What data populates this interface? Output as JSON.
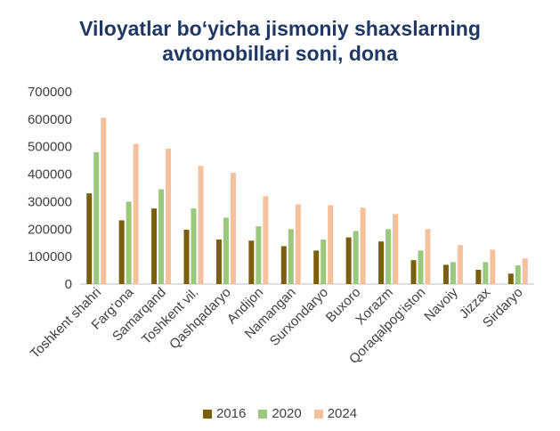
{
  "chart_data": {
    "type": "bar",
    "title_lines": [
      "Viloyatlar bo‘yicha jismoniy shaxslarning",
      "avtomobillari soni, dona"
    ],
    "categories": [
      "Toshkent shahri",
      "Farg‘ona",
      "Samarqand",
      "Toshkent vil.",
      "Qashqadaryo",
      "Andijon",
      "Namangan",
      "Surxondaryo",
      "Buxoro",
      "Xorazm",
      "Qoraqalpog‘iston",
      "Navoiy",
      "Jizzax",
      "Sirdaryo"
    ],
    "series": [
      {
        "name": "2016",
        "color": "#7a5f0f",
        "values": [
          330000,
          232000,
          275000,
          198000,
          162000,
          158000,
          138000,
          122000,
          170000,
          155000,
          87000,
          70000,
          52000,
          38000
        ]
      },
      {
        "name": "2020",
        "color": "#9bc77e",
        "values": [
          480000,
          300000,
          345000,
          275000,
          242000,
          210000,
          200000,
          162000,
          193000,
          200000,
          122000,
          80000,
          80000,
          68000
        ]
      },
      {
        "name": "2024",
        "color": "#f5c09c",
        "values": [
          605000,
          510000,
          493000,
          430000,
          405000,
          320000,
          290000,
          287000,
          278000,
          255000,
          200000,
          142000,
          125000,
          93000
        ]
      }
    ],
    "yticks": [
      "0",
      "100000",
      "200000",
      "300000",
      "400000",
      "500000",
      "600000",
      "700000"
    ],
    "ylim": [
      0,
      700000
    ],
    "xlabel": "",
    "ylabel": "",
    "legend_position": "bottom"
  }
}
